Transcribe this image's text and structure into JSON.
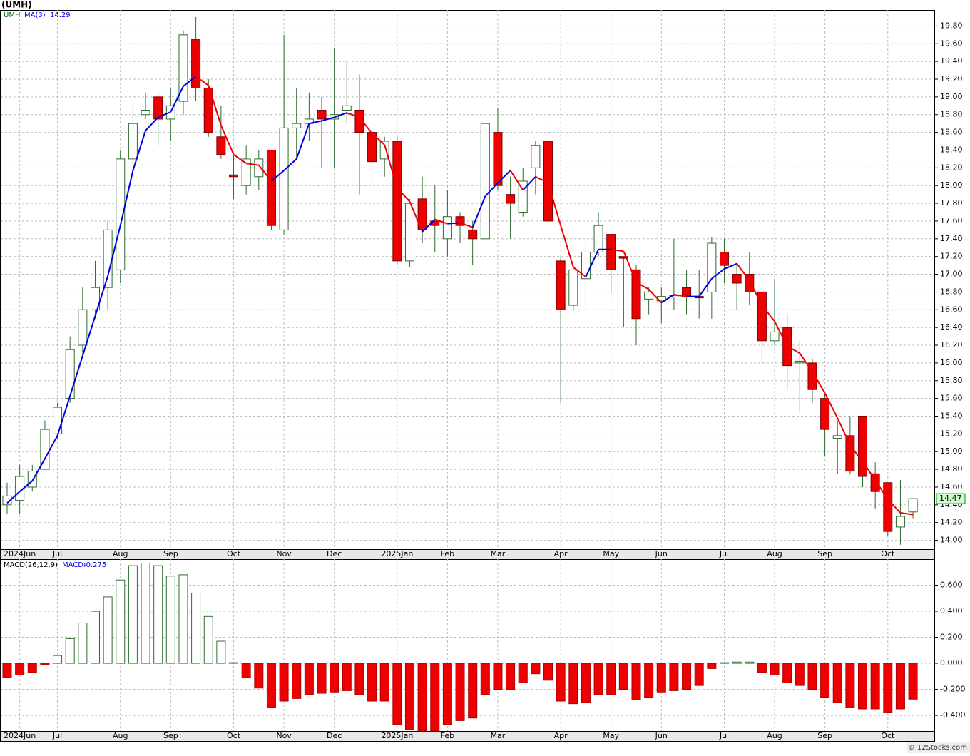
{
  "chart_data": [
    {
      "type": "candlestick",
      "title": "(UMH)",
      "legend_label": "UMH",
      "up_color": "#ffffff",
      "down_color": "#ee0000",
      "open": [
        14.4,
        14.45,
        14.6,
        14.8,
        15.2,
        15.6,
        16.2,
        16.6,
        16.85,
        17.05,
        18.3,
        18.8,
        19.0,
        18.75,
        18.95,
        19.65,
        19.1,
        18.55,
        18.12,
        18.0,
        18.1,
        18.4,
        17.5,
        18.65,
        18.7,
        18.85,
        18.75,
        18.85,
        18.85,
        18.6,
        18.3,
        18.5,
        17.15,
        17.85,
        17.6,
        17.4,
        17.65,
        17.5,
        17.4,
        18.6,
        17.9,
        17.7,
        18.2,
        18.5,
        17.15,
        16.65,
        16.95,
        17.25,
        17.45,
        17.2,
        17.05,
        16.72,
        16.7,
        16.75,
        16.85,
        16.75,
        16.8,
        17.25,
        17.0,
        17.0,
        16.8,
        16.25,
        16.4,
        16.0,
        16.0,
        15.6,
        15.15,
        15.18,
        15.4,
        14.75,
        14.65,
        14.15,
        14.32
      ],
      "high": [
        14.65,
        14.85,
        14.85,
        15.35,
        15.55,
        16.3,
        16.85,
        17.15,
        17.6,
        18.4,
        18.9,
        19.05,
        19.05,
        19.1,
        19.75,
        19.9,
        19.2,
        18.9,
        18.35,
        18.45,
        18.4,
        18.4,
        19.7,
        19.1,
        19.05,
        19.0,
        19.55,
        19.4,
        19.25,
        18.6,
        18.55,
        18.55,
        17.85,
        18.1,
        18.0,
        17.95,
        17.7,
        17.6,
        18.7,
        18.88,
        18.1,
        18.2,
        18.5,
        18.75,
        17.2,
        17.05,
        17.35,
        17.7,
        17.45,
        17.2,
        17.1,
        16.85,
        16.85,
        17.4,
        17.05,
        17.05,
        17.42,
        17.4,
        17.1,
        17.25,
        16.85,
        16.95,
        16.55,
        16.25,
        16.05,
        15.65,
        15.35,
        15.4,
        15.4,
        14.88,
        14.65,
        14.68,
        14.47
      ],
      "low": [
        14.3,
        14.3,
        14.55,
        14.8,
        15.15,
        15.55,
        16.1,
        16.5,
        16.6,
        16.9,
        18.25,
        18.75,
        18.45,
        18.5,
        18.8,
        18.95,
        18.55,
        18.3,
        17.85,
        17.9,
        17.95,
        17.5,
        17.45,
        18.3,
        18.5,
        18.2,
        18.2,
        18.7,
        17.9,
        18.05,
        18.1,
        17.1,
        17.08,
        17.35,
        17.25,
        17.2,
        17.35,
        17.1,
        17.4,
        17.95,
        17.4,
        17.65,
        17.9,
        17.6,
        15.55,
        16.6,
        16.6,
        17.2,
        16.8,
        16.4,
        16.2,
        16.55,
        16.45,
        16.6,
        16.55,
        16.5,
        16.5,
        16.9,
        16.6,
        16.65,
        16.0,
        16.2,
        15.7,
        15.45,
        15.55,
        14.95,
        14.75,
        14.75,
        14.6,
        14.35,
        14.05,
        13.95,
        14.25
      ],
      "close": [
        14.5,
        14.72,
        14.78,
        15.25,
        15.5,
        16.15,
        16.6,
        16.85,
        17.5,
        18.3,
        18.7,
        18.85,
        18.75,
        18.9,
        19.7,
        19.1,
        18.6,
        18.35,
        18.1,
        18.3,
        18.3,
        17.55,
        18.65,
        18.7,
        18.75,
        18.75,
        18.8,
        18.9,
        18.6,
        18.27,
        18.5,
        17.15,
        17.8,
        17.5,
        17.55,
        17.65,
        17.55,
        17.4,
        18.7,
        18.0,
        17.8,
        18.05,
        18.45,
        17.6,
        16.6,
        17.05,
        17.25,
        17.55,
        17.05,
        17.18,
        16.5,
        16.8,
        16.75,
        16.76,
        16.75,
        16.74,
        17.35,
        17.1,
        16.9,
        16.8,
        16.25,
        16.35,
        15.97,
        16.02,
        15.7,
        15.25,
        15.18,
        14.78,
        14.72,
        14.55,
        14.1,
        14.27,
        14.47
      ],
      "series": [
        {
          "name": "MA(3)",
          "up_color": "#0000dd",
          "down_color": "#ee0000",
          "values": [
            14.42,
            14.55,
            14.67,
            14.92,
            15.18,
            15.63,
            16.08,
            16.53,
            16.98,
            17.55,
            18.17,
            18.62,
            18.77,
            18.83,
            19.12,
            19.23,
            19.13,
            18.68,
            18.35,
            18.25,
            18.23,
            18.05,
            18.17,
            18.3,
            18.7,
            18.73,
            18.77,
            18.82,
            18.77,
            18.59,
            18.46,
            17.97,
            17.82,
            17.48,
            17.62,
            17.57,
            17.58,
            17.53,
            17.88,
            18.03,
            18.17,
            17.95,
            18.1,
            18.03,
            17.55,
            17.08,
            16.97,
            17.28,
            17.28,
            17.26,
            16.91,
            16.83,
            16.68,
            16.77,
            16.75,
            16.75,
            16.95,
            17.06,
            17.12,
            16.93,
            16.65,
            16.47,
            16.19,
            16.11,
            15.9,
            15.66,
            15.38,
            15.07,
            14.89,
            14.68,
            14.46,
            14.31,
            14.29
          ]
        }
      ],
      "ylim": [
        13.9,
        19.98
      ],
      "yticks": [
        {
          "value": 14.0,
          "label": "14.00"
        },
        {
          "value": 14.2,
          "label": "14.20"
        },
        {
          "value": 14.4,
          "label": "14.40"
        },
        {
          "value": 14.6,
          "label": "14.60"
        },
        {
          "value": 14.8,
          "label": "14.80"
        },
        {
          "value": 15.0,
          "label": "15.00"
        },
        {
          "value": 15.2,
          "label": "15.20"
        },
        {
          "value": 15.4,
          "label": "15.40"
        },
        {
          "value": 15.6,
          "label": "15.60"
        },
        {
          "value": 15.8,
          "label": "15.80"
        },
        {
          "value": 16.0,
          "label": "16.00"
        },
        {
          "value": 16.2,
          "label": "16.20"
        },
        {
          "value": 16.4,
          "label": "16.40"
        },
        {
          "value": 16.6,
          "label": "16.60"
        },
        {
          "value": 16.8,
          "label": "16.80"
        },
        {
          "value": 17.0,
          "label": "17.00"
        },
        {
          "value": 17.2,
          "label": "17.20"
        },
        {
          "value": 17.4,
          "label": "17.40"
        },
        {
          "value": 17.6,
          "label": "17.60"
        },
        {
          "value": 17.8,
          "label": "17.80"
        },
        {
          "value": 18.0,
          "label": "18.00"
        },
        {
          "value": 18.2,
          "label": "18.20"
        },
        {
          "value": 18.4,
          "label": "18.40"
        },
        {
          "value": 18.6,
          "label": "18.60"
        },
        {
          "value": 18.8,
          "label": "18.80"
        },
        {
          "value": 19.0,
          "label": "19.00"
        },
        {
          "value": 19.2,
          "label": "19.20"
        },
        {
          "value": 19.4,
          "label": "19.40"
        },
        {
          "value": 19.6,
          "label": "19.60"
        },
        {
          "value": 19.8,
          "label": "19.80"
        }
      ],
      "xticks": [
        {
          "value": 1,
          "label": "2024Jun"
        },
        {
          "value": 4,
          "label": "Jul"
        },
        {
          "value": 9,
          "label": "Aug"
        },
        {
          "value": 13,
          "label": "Sep"
        },
        {
          "value": 18,
          "label": "Oct"
        },
        {
          "value": 22,
          "label": "Nov"
        },
        {
          "value": 26,
          "label": "Dec"
        },
        {
          "value": 31,
          "label": "2025Jan"
        },
        {
          "value": 35,
          "label": "Feb"
        },
        {
          "value": 39,
          "label": "Mar"
        },
        {
          "value": 44,
          "label": "Apr"
        },
        {
          "value": 48,
          "label": "May"
        },
        {
          "value": 52,
          "label": "Jun"
        },
        {
          "value": 57,
          "label": "Jul"
        },
        {
          "value": 61,
          "label": "Aug"
        },
        {
          "value": 65,
          "label": "Sep"
        },
        {
          "value": 70,
          "label": "Oct"
        }
      ],
      "grid": true
    },
    {
      "type": "histogram",
      "name": "MACD(26,12,9)",
      "value_prefix": "MACD:",
      "up_color": "#ffffff",
      "down_color": "#ee0000",
      "values": [
        -0.11,
        -0.09,
        -0.07,
        -0.01,
        0.06,
        0.19,
        0.31,
        0.4,
        0.51,
        0.64,
        0.75,
        0.77,
        0.75,
        0.67,
        0.68,
        0.54,
        0.36,
        0.17,
        0.005,
        -0.11,
        -0.19,
        -0.34,
        -0.29,
        -0.27,
        -0.24,
        -0.23,
        -0.22,
        -0.21,
        -0.24,
        -0.29,
        -0.29,
        -0.47,
        -0.51,
        -0.52,
        -0.52,
        -0.47,
        -0.44,
        -0.42,
        -0.24,
        -0.2,
        -0.2,
        -0.15,
        -0.08,
        -0.13,
        -0.29,
        -0.31,
        -0.3,
        -0.24,
        -0.24,
        -0.2,
        -0.28,
        -0.26,
        -0.22,
        -0.21,
        -0.2,
        -0.17,
        -0.04,
        0.005,
        0.01,
        0.01,
        -0.07,
        -0.09,
        -0.15,
        -0.17,
        -0.2,
        -0.26,
        -0.3,
        -0.34,
        -0.35,
        -0.35,
        -0.38,
        -0.35,
        -0.275
      ],
      "ylim": [
        -0.52,
        0.8
      ],
      "yticks": [
        {
          "value": -0.4,
          "label": "-0.400"
        },
        {
          "value": -0.2,
          "label": "-0.200"
        },
        {
          "value": 0,
          "label": "0.000"
        },
        {
          "value": 0.2,
          "label": "0.200"
        },
        {
          "value": 0.4,
          "label": "0.400"
        },
        {
          "value": 0.6,
          "label": "0.600"
        }
      ],
      "grid": true
    }
  ],
  "footer": "© 12Stocks.com"
}
